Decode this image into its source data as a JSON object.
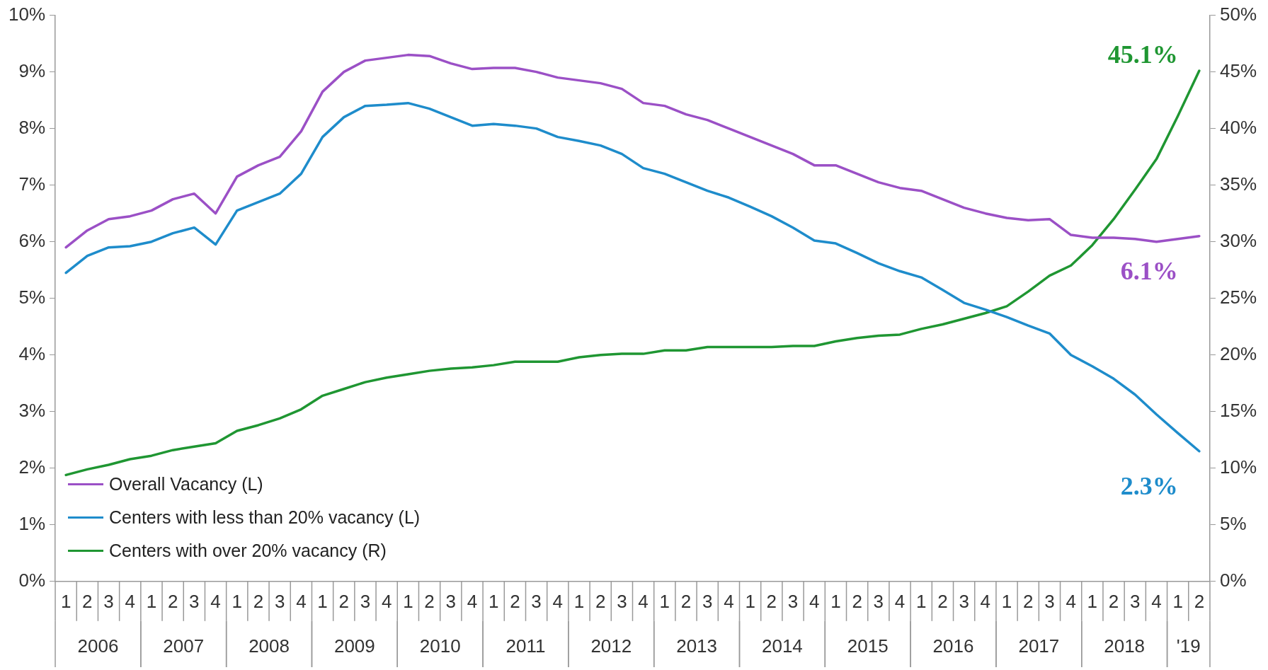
{
  "chart_data": {
    "type": "line",
    "categories": [
      "1",
      "2",
      "3",
      "4",
      "1",
      "2",
      "3",
      "4",
      "1",
      "2",
      "3",
      "4",
      "1",
      "2",
      "3",
      "4",
      "1",
      "2",
      "3",
      "4",
      "1",
      "2",
      "3",
      "4",
      "1",
      "2",
      "3",
      "4",
      "1",
      "2",
      "3",
      "4",
      "1",
      "2",
      "3",
      "4",
      "1",
      "2",
      "3",
      "4",
      "1",
      "2",
      "3",
      "4",
      "1",
      "2",
      "3",
      "4",
      "1",
      "2",
      "3",
      "4",
      "1",
      "2"
    ],
    "annotations": [
      "2006",
      "2007",
      "2008",
      "2009",
      "2010",
      "2011",
      "2012",
      "2013",
      "2014",
      "2015",
      "2016",
      "2017",
      "2018",
      "'19"
    ],
    "series": [
      {
        "name": "Overall Vacancy (L)",
        "color": "#9b50c6",
        "axis": "y",
        "values": [
          5.9,
          6.2,
          6.4,
          6.45,
          6.55,
          6.75,
          6.85,
          6.5,
          7.15,
          7.35,
          7.5,
          7.95,
          8.65,
          9.0,
          9.2,
          9.25,
          9.3,
          9.28,
          9.15,
          9.05,
          9.07,
          9.07,
          9.0,
          8.9,
          8.85,
          8.8,
          8.7,
          8.45,
          8.4,
          8.25,
          8.15,
          8.0,
          7.85,
          7.7,
          7.55,
          7.35,
          7.35,
          7.2,
          7.05,
          6.95,
          6.9,
          6.75,
          6.6,
          6.5,
          6.42,
          6.38,
          6.4,
          6.12,
          6.07,
          6.07,
          6.05,
          6.0,
          6.05,
          6.1
        ],
        "value_labels": [
          null,
          null,
          null,
          null,
          null,
          null,
          null,
          null,
          null,
          null,
          null,
          null,
          null,
          null,
          null,
          null,
          null,
          null,
          null,
          null,
          null,
          null,
          null,
          null,
          null,
          null,
          null,
          null,
          null,
          null,
          null,
          null,
          null,
          null,
          null,
          null,
          null,
          null,
          null,
          null,
          null,
          null,
          null,
          null,
          null,
          null,
          null,
          null,
          null,
          null,
          null,
          null,
          null,
          "6.1%"
        ]
      },
      {
        "name": "Centers with less than 20% vacancy (L)",
        "color": "#1e8ccb",
        "axis": "y",
        "values": [
          5.45,
          5.75,
          5.9,
          5.92,
          6.0,
          6.15,
          6.25,
          5.95,
          6.55,
          6.7,
          6.85,
          7.2,
          7.85,
          8.2,
          8.4,
          8.42,
          8.45,
          8.35,
          8.2,
          8.05,
          8.08,
          8.05,
          8.0,
          7.85,
          7.78,
          7.7,
          7.55,
          7.3,
          7.2,
          7.05,
          6.9,
          6.78,
          6.62,
          6.45,
          6.25,
          6.02,
          5.97,
          5.8,
          5.62,
          5.48,
          5.37,
          5.15,
          4.92,
          4.8,
          4.67,
          4.52,
          4.38,
          4.0,
          3.8,
          3.58,
          3.3,
          2.95,
          2.62,
          2.3
        ],
        "value_labels": [
          null,
          null,
          null,
          null,
          null,
          null,
          null,
          null,
          null,
          null,
          null,
          null,
          null,
          null,
          null,
          null,
          null,
          null,
          null,
          null,
          null,
          null,
          null,
          null,
          null,
          null,
          null,
          null,
          null,
          null,
          null,
          null,
          null,
          null,
          null,
          null,
          null,
          null,
          null,
          null,
          null,
          null,
          null,
          null,
          null,
          null,
          null,
          null,
          null,
          null,
          null,
          null,
          null,
          "2.3%"
        ]
      },
      {
        "name": "Centers with over 20% vacancy (R)",
        "color": "#1f9632",
        "axis": "y2",
        "values": [
          9.4,
          9.9,
          10.3,
          10.8,
          11.1,
          11.6,
          11.9,
          12.2,
          13.3,
          13.8,
          14.4,
          15.2,
          16.4,
          17.0,
          17.6,
          18.0,
          18.3,
          18.6,
          18.8,
          18.9,
          19.1,
          19.4,
          19.4,
          19.4,
          19.8,
          20.0,
          20.1,
          20.1,
          20.4,
          20.4,
          20.7,
          20.7,
          20.7,
          20.7,
          20.8,
          20.8,
          21.2,
          21.5,
          21.7,
          21.8,
          22.3,
          22.7,
          23.2,
          23.7,
          24.3,
          25.6,
          27.0,
          27.9,
          29.7,
          32.0,
          34.6,
          37.3,
          41.1,
          45.1
        ],
        "value_labels": [
          null,
          null,
          null,
          null,
          null,
          null,
          null,
          null,
          null,
          null,
          null,
          null,
          null,
          null,
          null,
          null,
          null,
          null,
          null,
          null,
          null,
          null,
          null,
          null,
          null,
          null,
          null,
          null,
          null,
          null,
          null,
          null,
          null,
          null,
          null,
          null,
          null,
          null,
          null,
          null,
          null,
          null,
          null,
          null,
          null,
          null,
          null,
          null,
          null,
          null,
          null,
          null,
          null,
          "45.1%"
        ]
      }
    ],
    "ylim": [
      0,
      10
    ],
    "yticks": [
      {
        "value": 0,
        "label": "0%"
      },
      {
        "value": 1,
        "label": "1%"
      },
      {
        "value": 2,
        "label": "2%"
      },
      {
        "value": 3,
        "label": "3%"
      },
      {
        "value": 4,
        "label": "4%"
      },
      {
        "value": 5,
        "label": "5%"
      },
      {
        "value": 6,
        "label": "6%"
      },
      {
        "value": 7,
        "label": "7%"
      },
      {
        "value": 8,
        "label": "8%"
      },
      {
        "value": 9,
        "label": "9%"
      },
      {
        "value": 10,
        "label": "10%"
      }
    ],
    "y2lim": [
      0,
      50
    ],
    "y2ticks": [
      {
        "value": 0,
        "label": "0%"
      },
      {
        "value": 5,
        "label": "5%"
      },
      {
        "value": 10,
        "label": "10%"
      },
      {
        "value": 15,
        "label": "15%"
      },
      {
        "value": 20,
        "label": "20%"
      },
      {
        "value": 25,
        "label": "25%"
      },
      {
        "value": 30,
        "label": "30%"
      },
      {
        "value": 35,
        "label": "35%"
      },
      {
        "value": 40,
        "label": "40%"
      },
      {
        "value": 45,
        "label": "45%"
      },
      {
        "value": 50,
        "label": "50%"
      }
    ],
    "grid": false,
    "legend": "bottom left",
    "marker": "none",
    "line_style": "solid"
  }
}
